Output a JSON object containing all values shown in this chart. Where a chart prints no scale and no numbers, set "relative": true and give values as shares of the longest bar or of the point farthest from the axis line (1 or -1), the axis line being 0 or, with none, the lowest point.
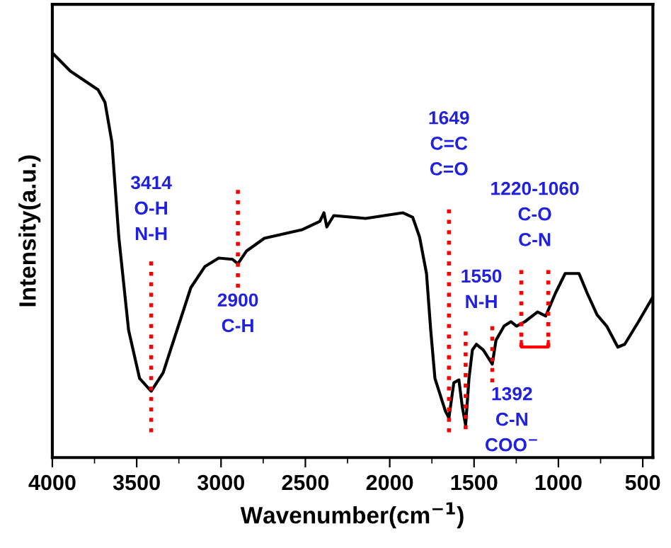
{
  "chart_data": {
    "type": "line",
    "relative": true,
    "xlabel": "Wavenumber(cm$^{−1}$)",
    "ylabel": "Intensity(a.u.)",
    "x": [
      4000,
      3893,
      3729,
      3688,
      3647,
      3606,
      3548,
      3483,
      3414,
      3343,
      3261,
      3179,
      3096,
      3014,
      2932,
      2900,
      2850,
      2743,
      2521,
      2414,
      2390,
      2373,
      2332,
      2143,
      1921,
      1864,
      1823,
      1782,
      1757,
      1732,
      1670,
      1649,
      1620,
      1590,
      1570,
      1550,
      1530,
      1510,
      1486,
      1445,
      1392,
      1370,
      1322,
      1281,
      1248,
      1198,
      1124,
      1075,
      1018,
      960,
      878,
      829,
      771,
      714,
      648,
      607,
      525,
      443
    ],
    "series": [
      {
        "color": "#000000",
        "values": [
          1.0,
          0.955,
          0.909,
          0.878,
          0.78,
          0.545,
          0.315,
          0.196,
          0.164,
          0.21,
          0.315,
          0.42,
          0.472,
          0.493,
          0.49,
          0.479,
          0.51,
          0.542,
          0.563,
          0.584,
          0.605,
          0.57,
          0.598,
          0.591,
          0.605,
          0.594,
          0.545,
          0.455,
          0.315,
          0.196,
          0.115,
          0.098,
          0.185,
          0.192,
          0.126,
          0.08,
          0.196,
          0.266,
          0.28,
          0.266,
          0.231,
          0.29,
          0.325,
          0.336,
          0.325,
          0.336,
          0.36,
          0.35,
          0.406,
          0.455,
          0.455,
          0.406,
          0.353,
          0.325,
          0.273,
          0.28,
          0.336,
          0.395
        ]
      }
    ],
    "xlim": [
      4000,
      440
    ],
    "xticks": [
      4000,
      3500,
      3000,
      2500,
      2000,
      1500,
      1000,
      500
    ],
    "ref_lines": [
      {
        "axis": "x",
        "value": 3414,
        "color": "#ff0000",
        "line_style": "dotted"
      },
      {
        "axis": "x",
        "value": 2900,
        "color": "#ff0000",
        "line_style": "dotted"
      },
      {
        "axis": "x",
        "value": 1649,
        "color": "#ff0000",
        "line_style": "dotted"
      },
      {
        "axis": "x",
        "value": 1550,
        "color": "#ff0000",
        "line_style": "dotted"
      },
      {
        "axis": "x",
        "value": 1392,
        "color": "#ff0000",
        "line_style": "dotted"
      },
      {
        "axis": "x",
        "value": 1220,
        "color": "#ff0000",
        "line_style": "dotted"
      },
      {
        "axis": "x",
        "value": 1060,
        "color": "#ff0000",
        "line_style": "dotted"
      }
    ],
    "annotations": [
      "3414\nO-H\nN-H",
      "2900\nC-H",
      "1649\nC=C\nC=O",
      "1550\nN-H",
      "1392\nC-N\nCOO$^{−}$",
      "1220-1060\nC-O\nC-N"
    ],
    "grid": false,
    "legend": false,
    "marker": "none",
    "line_style": "solid"
  }
}
